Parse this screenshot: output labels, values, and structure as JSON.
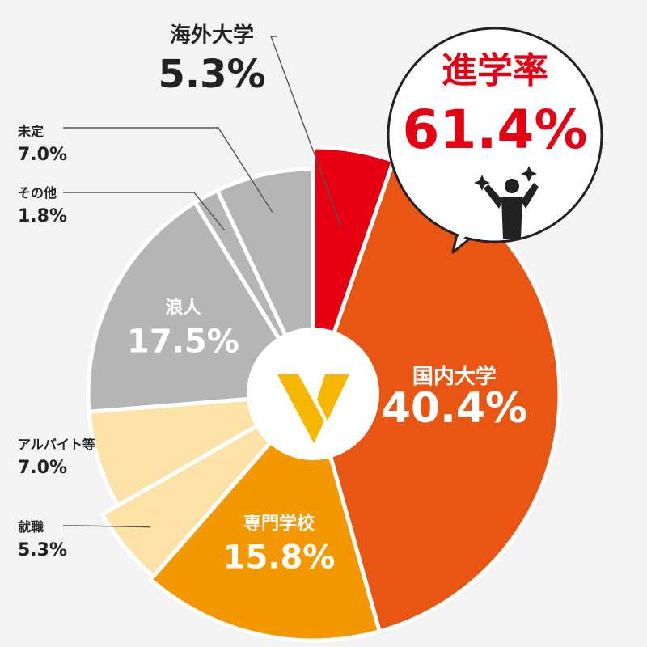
{
  "callout": {
    "title": "進学率",
    "value": "61.4%",
    "color": "#e60012",
    "icon": "celebrating-person-icon"
  },
  "logo": {
    "name": "brand-logo",
    "color": "#f7b600"
  },
  "chart_data": {
    "type": "pie",
    "start": "12 o'clock, clockwise",
    "slices": [
      {
        "label": "海外大学",
        "value": 5.3,
        "value_label": "5.3%",
        "color": "#e60012"
      },
      {
        "label": "国内大学",
        "value": 40.4,
        "value_label": "40.4%",
        "color": "#e95513"
      },
      {
        "label": "専門学校",
        "value": 15.8,
        "value_label": "15.8%",
        "color": "#f39800"
      },
      {
        "label": "就職",
        "value": 5.3,
        "value_label": "5.3%",
        "color": "#fde2a8"
      },
      {
        "label": "アルバイト等",
        "value": 7.0,
        "value_label": "7.0%",
        "color": "#fde2a8"
      },
      {
        "label": "浪人",
        "value": 17.5,
        "value_label": "17.5%",
        "color": "#b5b5b6"
      },
      {
        "label": "その他",
        "value": 1.8,
        "value_label": "1.8%",
        "color": "#b5b5b6"
      },
      {
        "label": "未定",
        "value": 7.0,
        "value_label": "7.0%",
        "color": "#b5b5b6"
      }
    ]
  }
}
